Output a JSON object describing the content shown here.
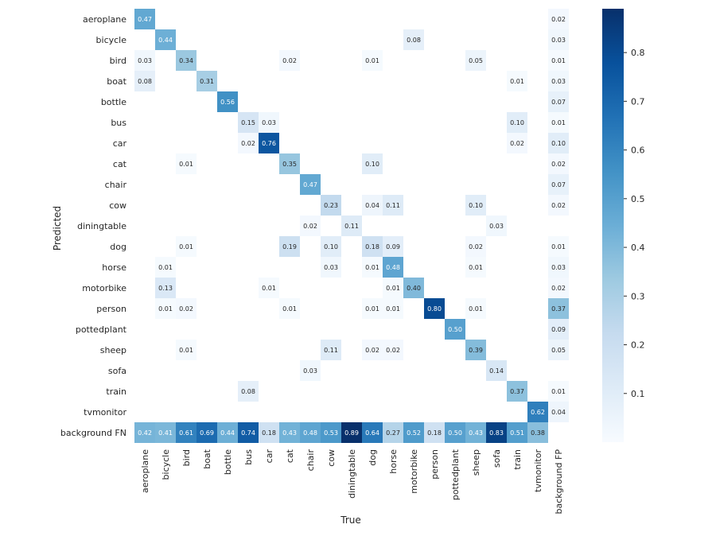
{
  "chart_data": {
    "type": "heatmap",
    "title": "",
    "xlabel": "True",
    "ylabel": "Predicted",
    "x_categories": [
      "aeroplane",
      "bicycle",
      "bird",
      "boat",
      "bottle",
      "bus",
      "car",
      "cat",
      "chair",
      "cow",
      "diningtable",
      "dog",
      "horse",
      "motorbike",
      "person",
      "pottedplant",
      "sheep",
      "sofa",
      "train",
      "tvmonitor",
      "background FP"
    ],
    "y_categories": [
      "aeroplane",
      "bicycle",
      "bird",
      "boat",
      "bottle",
      "bus",
      "car",
      "cat",
      "chair",
      "cow",
      "diningtable",
      "dog",
      "horse",
      "motorbike",
      "person",
      "pottedplant",
      "sheep",
      "sofa",
      "train",
      "tvmonitor",
      "background FN"
    ],
    "values": [
      [
        0.47,
        null,
        null,
        null,
        null,
        null,
        null,
        null,
        null,
        null,
        null,
        null,
        null,
        null,
        null,
        null,
        null,
        null,
        null,
        null,
        0.02
      ],
      [
        null,
        0.44,
        null,
        null,
        null,
        null,
        null,
        null,
        null,
        null,
        null,
        null,
        null,
        0.08,
        null,
        null,
        null,
        null,
        null,
        null,
        0.03
      ],
      [
        0.03,
        null,
        0.34,
        null,
        null,
        null,
        null,
        0.02,
        null,
        null,
        null,
        0.01,
        null,
        null,
        null,
        null,
        0.05,
        null,
        null,
        null,
        0.01
      ],
      [
        0.08,
        null,
        null,
        0.31,
        null,
        null,
        null,
        null,
        null,
        null,
        null,
        null,
        null,
        null,
        null,
        null,
        null,
        null,
        0.01,
        null,
        0.03
      ],
      [
        null,
        null,
        null,
        null,
        0.56,
        null,
        null,
        null,
        null,
        null,
        null,
        null,
        null,
        null,
        null,
        null,
        null,
        null,
        null,
        null,
        0.07
      ],
      [
        null,
        null,
        null,
        null,
        null,
        0.15,
        0.03,
        null,
        null,
        null,
        null,
        null,
        null,
        null,
        null,
        null,
        null,
        null,
        0.1,
        null,
        0.01
      ],
      [
        null,
        null,
        null,
        null,
        null,
        0.02,
        0.76,
        null,
        null,
        null,
        null,
        null,
        null,
        null,
        null,
        null,
        null,
        null,
        0.02,
        null,
        0.1
      ],
      [
        null,
        null,
        0.01,
        null,
        null,
        null,
        null,
        0.35,
        null,
        null,
        null,
        0.1,
        null,
        null,
        null,
        null,
        null,
        null,
        null,
        null,
        0.02
      ],
      [
        null,
        null,
        null,
        null,
        null,
        null,
        null,
        null,
        0.47,
        null,
        null,
        null,
        null,
        null,
        null,
        null,
        null,
        null,
        null,
        null,
        0.07
      ],
      [
        null,
        null,
        null,
        null,
        null,
        null,
        null,
        null,
        null,
        0.23,
        null,
        0.04,
        0.11,
        null,
        null,
        null,
        0.1,
        null,
        null,
        null,
        0.02
      ],
      [
        null,
        null,
        null,
        null,
        null,
        null,
        null,
        null,
        0.02,
        null,
        0.11,
        null,
        null,
        null,
        null,
        null,
        null,
        0.03,
        null,
        null,
        null
      ],
      [
        null,
        null,
        0.01,
        null,
        null,
        null,
        null,
        0.19,
        null,
        0.1,
        null,
        0.18,
        0.09,
        null,
        null,
        null,
        0.02,
        null,
        null,
        null,
        0.01
      ],
      [
        null,
        0.01,
        null,
        null,
        null,
        null,
        null,
        null,
        null,
        0.03,
        null,
        0.01,
        0.48,
        null,
        null,
        null,
        0.01,
        null,
        null,
        null,
        0.03
      ],
      [
        null,
        0.13,
        null,
        null,
        null,
        null,
        0.01,
        null,
        null,
        null,
        null,
        null,
        0.01,
        0.4,
        null,
        null,
        null,
        null,
        null,
        null,
        0.02
      ],
      [
        null,
        0.01,
        0.02,
        null,
        null,
        null,
        null,
        0.01,
        null,
        null,
        null,
        0.01,
        0.01,
        null,
        0.8,
        null,
        0.01,
        null,
        null,
        null,
        0.37
      ],
      [
        null,
        null,
        null,
        null,
        null,
        null,
        null,
        null,
        null,
        null,
        null,
        null,
        null,
        null,
        null,
        0.5,
        null,
        null,
        null,
        null,
        0.09
      ],
      [
        null,
        null,
        0.01,
        null,
        null,
        null,
        null,
        null,
        null,
        0.11,
        null,
        0.02,
        0.02,
        null,
        null,
        null,
        0.39,
        null,
        null,
        null,
        0.05
      ],
      [
        null,
        null,
        null,
        null,
        null,
        null,
        null,
        null,
        0.03,
        null,
        null,
        null,
        null,
        null,
        null,
        null,
        null,
        0.14,
        null,
        null,
        null
      ],
      [
        null,
        null,
        null,
        null,
        null,
        0.08,
        null,
        null,
        null,
        null,
        null,
        null,
        null,
        null,
        null,
        null,
        null,
        null,
        0.37,
        null,
        0.01
      ],
      [
        null,
        null,
        null,
        null,
        null,
        null,
        null,
        null,
        null,
        null,
        null,
        null,
        null,
        null,
        null,
        null,
        null,
        null,
        null,
        0.62,
        0.04
      ],
      [
        0.42,
        0.41,
        0.61,
        0.69,
        0.44,
        0.74,
        0.18,
        0.43,
        0.48,
        0.53,
        0.89,
        0.64,
        0.27,
        0.52,
        0.18,
        0.5,
        0.43,
        0.83,
        0.51,
        0.38,
        null
      ]
    ],
    "colorbar": {
      "colormap": "Blues",
      "min": 0.0,
      "max": 0.89,
      "ticks": [
        0.1,
        0.2,
        0.3,
        0.4,
        0.5,
        0.6,
        0.7,
        0.8
      ],
      "tick_labels": [
        "0.1",
        "0.2",
        "0.3",
        "0.4",
        "0.5",
        "0.6",
        "0.7",
        "0.8"
      ]
    },
    "grid": false
  }
}
